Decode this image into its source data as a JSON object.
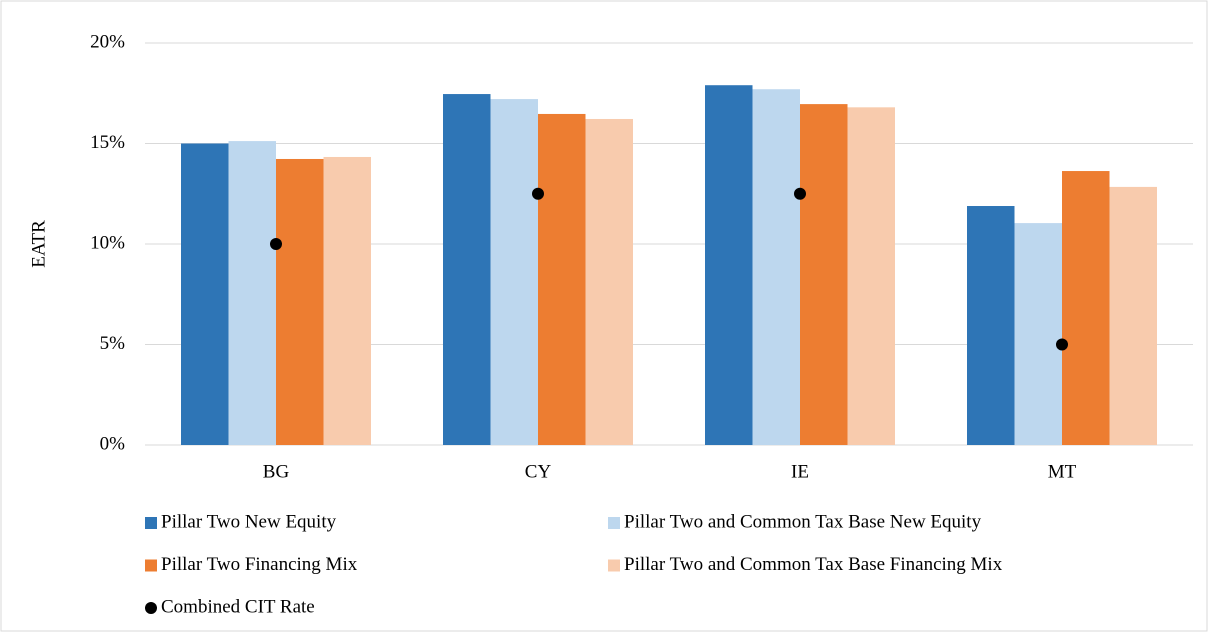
{
  "chart_data": {
    "type": "bar",
    "y_label": "EATR",
    "categories": [
      "BG",
      "CY",
      "IE",
      "MT"
    ],
    "series": [
      {
        "name": "Pillar Two New Equity",
        "color": "#2e75b6",
        "values": [
          15.0,
          17.46,
          17.9,
          11.89
        ]
      },
      {
        "name": "Pillar Two and Common Tax Base New Equity",
        "color": "#bdd7ee",
        "values": [
          15.12,
          17.21,
          17.7,
          11.04
        ]
      },
      {
        "name": "Pillar Two Financing Mix",
        "color": "#ed7d31",
        "values": [
          14.23,
          16.47,
          16.96,
          13.63
        ]
      },
      {
        "name": "Pillar Two and Common Tax Base Financing Mix",
        "color": "#f8cbad",
        "values": [
          14.33,
          16.22,
          16.8,
          12.84
        ]
      },
      {
        "name": "Combined CIT Rate",
        "type": "scatter",
        "color": "#000000",
        "values": [
          10,
          12.5,
          12.5,
          5
        ]
      }
    ],
    "ylim": [
      0,
      20
    ],
    "yticks": [
      {
        "value": 0,
        "label": "0%"
      },
      {
        "value": 5,
        "label": "5%"
      },
      {
        "value": 10,
        "label": "10%"
      },
      {
        "value": 15,
        "label": "15%"
      },
      {
        "value": 20,
        "label": "20%"
      }
    ],
    "grid": true
  }
}
